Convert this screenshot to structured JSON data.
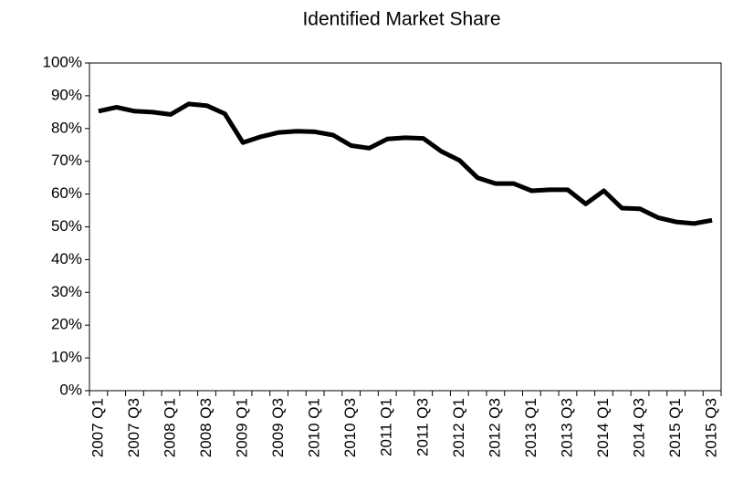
{
  "chart_data": {
    "type": "line",
    "title": "Identified Market Share",
    "categories": [
      "2007 Q1",
      null,
      "2007 Q3",
      null,
      "2008 Q1",
      null,
      "2008 Q3",
      null,
      "2009 Q1",
      null,
      "2009 Q3",
      null,
      "2010 Q1",
      null,
      "2010 Q3",
      null,
      "2011 Q1",
      null,
      "2011 Q3",
      null,
      "2012 Q1",
      null,
      "2012 Q3",
      null,
      "2013 Q1",
      null,
      "2013 Q3",
      null,
      "2014 Q1",
      null,
      "2014 Q3",
      null,
      "2015 Q1",
      null,
      "2015 Q3"
    ],
    "series": [
      {
        "name": "Identified Market Share",
        "color": "#000000",
        "values": [
          85.3,
          86.5,
          85.3,
          85,
          84.3,
          87.5,
          87,
          84.5,
          75.7,
          77.5,
          78.8,
          79.2,
          79,
          78,
          74.8,
          74,
          76.8,
          77.2,
          77,
          73,
          70.3,
          65,
          63.2,
          63.2,
          61,
          61.3,
          61.3,
          57,
          61,
          55.7,
          55.5,
          52.8,
          51.5,
          51,
          52
        ]
      }
    ],
    "ylim": [
      0,
      100
    ],
    "yticks": [
      {
        "value": 0,
        "label": "0%"
      },
      {
        "value": 10,
        "label": "10%"
      },
      {
        "value": 20,
        "label": "20%"
      },
      {
        "value": 30,
        "label": "30%"
      },
      {
        "value": 40,
        "label": "40%"
      },
      {
        "value": 50,
        "label": "50%"
      },
      {
        "value": 60,
        "label": "60%"
      },
      {
        "value": 70,
        "label": "70%"
      },
      {
        "value": 80,
        "label": "80%"
      },
      {
        "value": 90,
        "label": "90%"
      },
      {
        "value": 100,
        "label": "100%"
      }
    ],
    "grid": false
  }
}
